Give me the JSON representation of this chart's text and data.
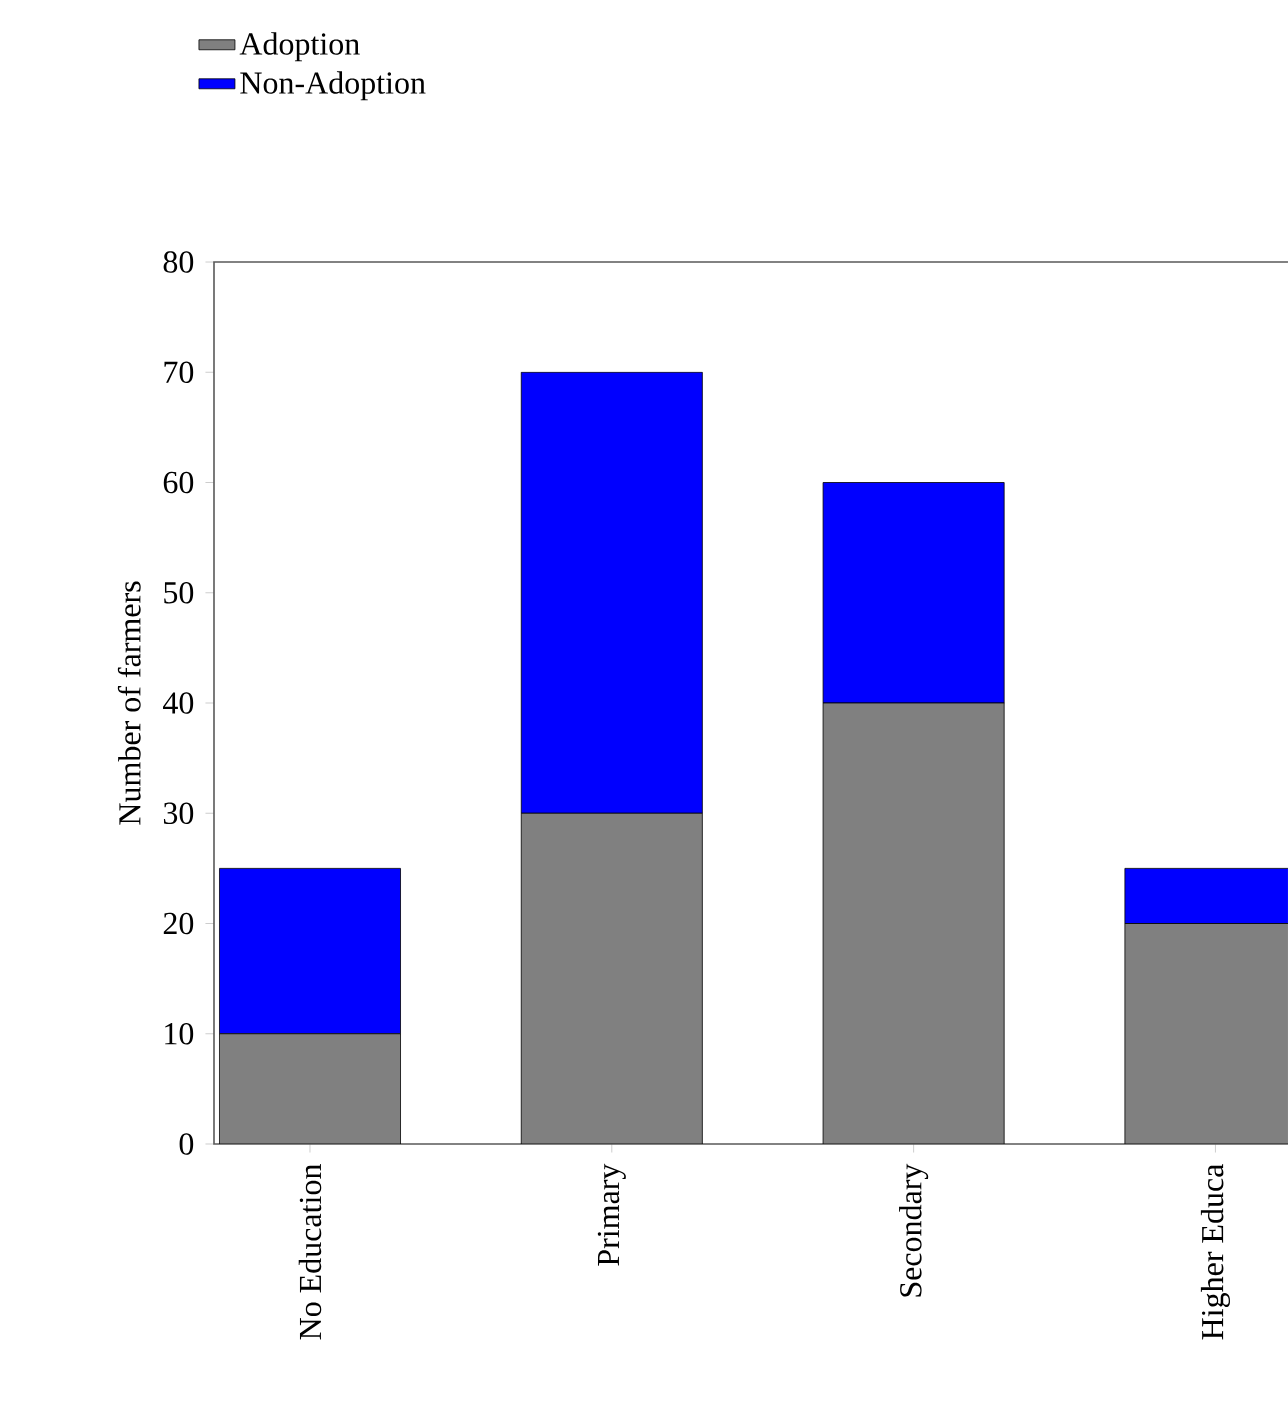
{
  "chart_data": {
    "type": "bar",
    "stacked": true,
    "ylabel": "Number of farmers",
    "categories": [
      "No Education",
      "Primary",
      "Secondary",
      "Higher Educa"
    ],
    "series": [
      {
        "name": "Adoption",
        "color": "#808080",
        "values": [
          10,
          30,
          40,
          20
        ]
      },
      {
        "name": "Non-Adoption",
        "color": "#0000ff",
        "values": [
          15,
          40,
          20,
          5
        ]
      }
    ],
    "ylim": [
      0,
      80
    ],
    "yticks": [
      0,
      10,
      20,
      30,
      40,
      50,
      60,
      70,
      80
    ],
    "legend": "top left"
  }
}
